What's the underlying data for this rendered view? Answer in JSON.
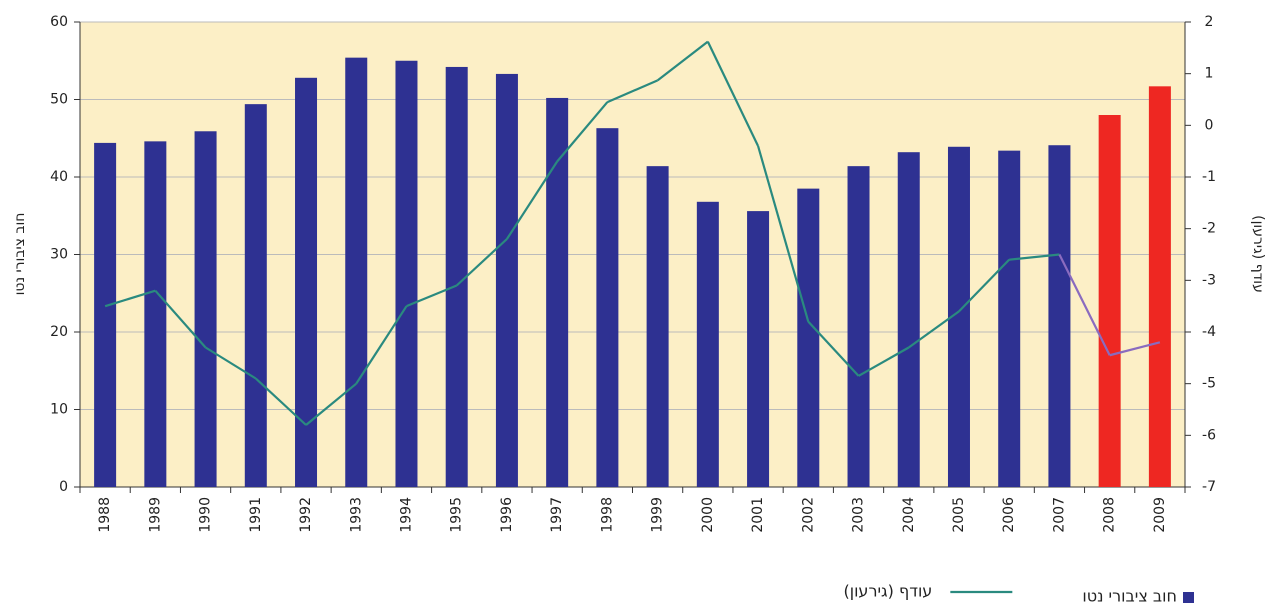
{
  "chart_data": {
    "type": "bar+line",
    "ylabel": "חוב ציבורי נטו",
    "y2label": "עודף (גירעון)",
    "categories": [
      "1988",
      "1989",
      "1990",
      "1991",
      "1992",
      "1993",
      "1994",
      "1995",
      "1996",
      "1997",
      "1998",
      "1999",
      "2000",
      "2001",
      "2002",
      "2003",
      "2004",
      "2005",
      "2006",
      "2007",
      "2008",
      "2009"
    ],
    "series": [
      {
        "name": "חוב ציבורי נטו",
        "type": "bar",
        "color": "#2e3192",
        "colors": [
          "#2e3192",
          "#2e3192",
          "#2e3192",
          "#2e3192",
          "#2e3192",
          "#2e3192",
          "#2e3192",
          "#2e3192",
          "#2e3192",
          "#2e3192",
          "#2e3192",
          "#2e3192",
          "#2e3192",
          "#2e3192",
          "#2e3192",
          "#2e3192",
          "#2e3192",
          "#2e3192",
          "#2e3192",
          "#2e3192",
          "#ee2722",
          "#ee2722"
        ],
        "values": [
          44.4,
          44.6,
          45.9,
          49.4,
          52.8,
          55.4,
          55.0,
          54.2,
          53.3,
          50.2,
          46.3,
          41.4,
          36.8,
          35.6,
          38.5,
          41.4,
          43.2,
          43.9,
          43.4,
          44.1,
          48.0,
          51.7
        ]
      },
      {
        "name": "עודף (גירעון)",
        "type": "line",
        "axis": "y2",
        "color": "#2a8a7f",
        "colors": [
          "#2a8a7f",
          "#2a8a7f",
          "#2a8a7f",
          "#2a8a7f",
          "#2a8a7f",
          "#2a8a7f",
          "#2a8a7f",
          "#2a8a7f",
          "#2a8a7f",
          "#2a8a7f",
          "#2a8a7f",
          "#2a8a7f",
          "#2a8a7f",
          "#2a8a7f",
          "#2a8a7f",
          "#2a8a7f",
          "#2a8a7f",
          "#2a8a7f",
          "#2a8a7f",
          "#2a8a7f",
          "#8a6bbf",
          "#8a6bbf"
        ],
        "values": [
          -3.5,
          -3.2,
          -4.3,
          -4.9,
          -5.8,
          -5.0,
          -3.5,
          -3.1,
          -2.2,
          -0.7,
          0.45,
          0.87,
          1.62,
          -0.4,
          -3.8,
          -4.85,
          -4.3,
          -3.6,
          -2.6,
          -2.5,
          -4.45,
          -4.2
        ]
      }
    ],
    "ylim": [
      0,
      60
    ],
    "yticks": [
      0,
      10,
      20,
      30,
      40,
      50,
      60
    ],
    "y2lim": [
      -7,
      2
    ],
    "y2ticks": [
      -7,
      -6,
      -5,
      -4,
      -3,
      -2,
      -1,
      0,
      1,
      2
    ],
    "grid": true,
    "background": "#fcefc6",
    "legend": "bottom-right"
  }
}
